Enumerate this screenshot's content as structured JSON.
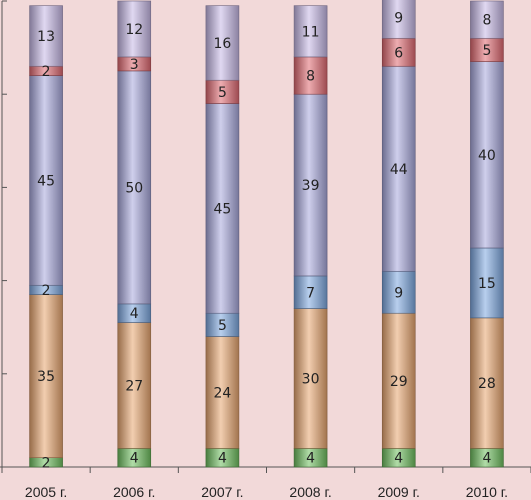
{
  "chart_data": {
    "type": "bar",
    "stacked": true,
    "orientation": "vertical",
    "categories": [
      "2005 г.",
      "2006 г.",
      "2007 г.",
      "2008 г.",
      "2009 г.",
      "2010 г."
    ],
    "series": [
      {
        "values": [
          2,
          4,
          4,
          4,
          4,
          4
        ],
        "color": "#6fbf5f"
      },
      {
        "values": [
          35,
          27,
          24,
          30,
          29,
          28
        ],
        "color": "#e8a670"
      },
      {
        "values": [
          2,
          4,
          5,
          7,
          9,
          15
        ],
        "color": "#7ea8e0"
      },
      {
        "values": [
          45,
          50,
          45,
          39,
          44,
          40
        ],
        "color": "#a8a8dc"
      },
      {
        "values": [
          2,
          3,
          5,
          8,
          6,
          5
        ],
        "color": "#e06a72"
      },
      {
        "values": [
          13,
          12,
          16,
          11,
          9,
          8
        ],
        "color": "#c7b8e6"
      }
    ],
    "ylim": [
      0,
      100
    ],
    "grid": false,
    "legend": "none",
    "title": "",
    "xlabel": "",
    "ylabel": ""
  }
}
